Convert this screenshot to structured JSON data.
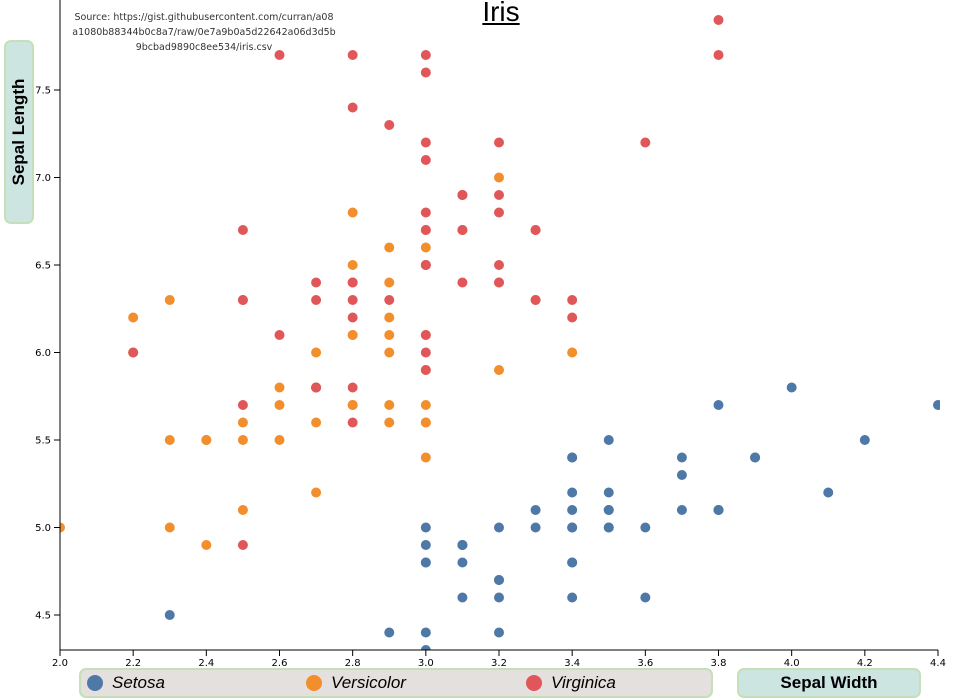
{
  "chart_data": {
    "type": "scatter",
    "title": "Iris",
    "source": "Source: https://gist.githubusercontent.com/curran/a08a1080b88344b0c8a7/raw/0e7a9b0a5d22642a06d3d5b9bcbad9890c8ee534/iris.csv",
    "xlabel": "Sepal Width",
    "ylabel": "Sepal Length",
    "xlim": [
      2.0,
      4.4
    ],
    "ylim": [
      4.3,
      7.9
    ],
    "xticks": [
      "2.0",
      "2.2",
      "2.4",
      "2.6",
      "2.8",
      "3.0",
      "3.2",
      "3.4",
      "3.6",
      "3.8",
      "4.0",
      "4.2",
      "4.4"
    ],
    "yticks": [
      "4.5",
      "5.0",
      "5.5",
      "6.0",
      "6.5",
      "7.0",
      "7.5"
    ],
    "legend": "bottom",
    "series": [
      {
        "name": "Setosa",
        "color": "#4e79a7",
        "points": [
          [
            3.5,
            5.1
          ],
          [
            3.0,
            4.9
          ],
          [
            3.2,
            4.7
          ],
          [
            3.1,
            4.6
          ],
          [
            3.6,
            5.0
          ],
          [
            3.9,
            5.4
          ],
          [
            3.4,
            4.6
          ],
          [
            3.4,
            5.0
          ],
          [
            2.9,
            4.4
          ],
          [
            3.1,
            4.9
          ],
          [
            3.7,
            5.4
          ],
          [
            3.4,
            4.8
          ],
          [
            3.0,
            4.8
          ],
          [
            3.0,
            4.3
          ],
          [
            4.0,
            5.8
          ],
          [
            4.4,
            5.7
          ],
          [
            3.9,
            5.4
          ],
          [
            3.5,
            5.1
          ],
          [
            3.8,
            5.7
          ],
          [
            3.8,
            5.1
          ],
          [
            3.4,
            5.4
          ],
          [
            3.7,
            5.1
          ],
          [
            3.6,
            4.6
          ],
          [
            3.3,
            5.1
          ],
          [
            3.4,
            4.8
          ],
          [
            3.0,
            5.0
          ],
          [
            3.4,
            5.0
          ],
          [
            3.5,
            5.2
          ],
          [
            3.4,
            5.2
          ],
          [
            3.2,
            4.7
          ],
          [
            3.1,
            4.8
          ],
          [
            3.4,
            5.4
          ],
          [
            4.1,
            5.2
          ],
          [
            4.2,
            5.5
          ],
          [
            3.1,
            4.9
          ],
          [
            3.2,
            5.0
          ],
          [
            3.5,
            5.5
          ],
          [
            3.1,
            4.9
          ],
          [
            3.0,
            4.4
          ],
          [
            3.4,
            5.1
          ],
          [
            3.5,
            5.0
          ],
          [
            2.3,
            4.5
          ],
          [
            3.2,
            4.4
          ],
          [
            3.5,
            5.0
          ],
          [
            3.8,
            5.1
          ],
          [
            3.0,
            4.8
          ],
          [
            3.8,
            5.1
          ],
          [
            3.2,
            4.6
          ],
          [
            3.7,
            5.3
          ],
          [
            3.3,
            5.0
          ]
        ]
      },
      {
        "name": "Versicolor",
        "color": "#f28e2b",
        "points": [
          [
            3.2,
            7.0
          ],
          [
            3.2,
            6.4
          ],
          [
            3.1,
            6.9
          ],
          [
            2.3,
            5.5
          ],
          [
            2.8,
            6.5
          ],
          [
            2.8,
            5.7
          ],
          [
            3.3,
            6.3
          ],
          [
            2.4,
            4.9
          ],
          [
            2.9,
            6.6
          ],
          [
            2.7,
            5.2
          ],
          [
            2.0,
            5.0
          ],
          [
            3.0,
            5.9
          ],
          [
            2.2,
            6.0
          ],
          [
            2.9,
            6.1
          ],
          [
            2.9,
            5.6
          ],
          [
            3.1,
            6.7
          ],
          [
            3.0,
            5.6
          ],
          [
            2.7,
            5.8
          ],
          [
            2.2,
            6.2
          ],
          [
            2.5,
            5.6
          ],
          [
            3.2,
            5.9
          ],
          [
            2.8,
            6.1
          ],
          [
            2.5,
            6.3
          ],
          [
            2.8,
            6.1
          ],
          [
            2.9,
            6.4
          ],
          [
            3.0,
            6.6
          ],
          [
            2.8,
            6.8
          ],
          [
            3.0,
            6.7
          ],
          [
            2.9,
            6.0
          ],
          [
            2.6,
            5.7
          ],
          [
            2.4,
            5.5
          ],
          [
            2.4,
            5.5
          ],
          [
            2.7,
            5.8
          ],
          [
            2.7,
            6.0
          ],
          [
            3.0,
            5.4
          ],
          [
            3.4,
            6.0
          ],
          [
            3.1,
            6.7
          ],
          [
            2.3,
            6.3
          ],
          [
            3.0,
            5.6
          ],
          [
            2.5,
            5.5
          ],
          [
            2.6,
            5.5
          ],
          [
            3.0,
            6.1
          ],
          [
            2.6,
            5.8
          ],
          [
            2.3,
            5.0
          ],
          [
            2.7,
            5.6
          ],
          [
            3.0,
            5.7
          ],
          [
            2.9,
            5.7
          ],
          [
            2.9,
            6.2
          ],
          [
            2.5,
            5.1
          ],
          [
            2.8,
            5.7
          ]
        ]
      },
      {
        "name": "Virginica",
        "color": "#e15759",
        "points": [
          [
            3.3,
            6.3
          ],
          [
            2.7,
            5.8
          ],
          [
            3.0,
            7.1
          ],
          [
            2.9,
            6.3
          ],
          [
            3.0,
            6.5
          ],
          [
            3.0,
            7.6
          ],
          [
            2.5,
            4.9
          ],
          [
            2.9,
            7.3
          ],
          [
            2.5,
            6.7
          ],
          [
            3.6,
            7.2
          ],
          [
            3.2,
            6.5
          ],
          [
            2.7,
            6.4
          ],
          [
            3.0,
            6.8
          ],
          [
            2.5,
            5.7
          ],
          [
            2.8,
            5.8
          ],
          [
            3.2,
            6.4
          ],
          [
            3.0,
            6.5
          ],
          [
            3.8,
            7.7
          ],
          [
            2.6,
            7.7
          ],
          [
            2.2,
            6.0
          ],
          [
            3.2,
            6.9
          ],
          [
            2.8,
            5.6
          ],
          [
            2.8,
            7.7
          ],
          [
            2.7,
            6.3
          ],
          [
            3.3,
            6.7
          ],
          [
            3.2,
            7.2
          ],
          [
            2.8,
            6.2
          ],
          [
            3.0,
            6.1
          ],
          [
            2.8,
            6.4
          ],
          [
            3.0,
            7.2
          ],
          [
            2.8,
            7.4
          ],
          [
            3.8,
            7.9
          ],
          [
            2.8,
            6.4
          ],
          [
            2.8,
            6.3
          ],
          [
            2.6,
            6.1
          ],
          [
            3.0,
            7.7
          ],
          [
            3.4,
            6.3
          ],
          [
            3.1,
            6.4
          ],
          [
            3.0,
            6.0
          ],
          [
            3.1,
            6.9
          ],
          [
            3.1,
            6.7
          ],
          [
            3.1,
            6.9
          ],
          [
            2.7,
            5.8
          ],
          [
            3.2,
            6.8
          ],
          [
            3.3,
            6.7
          ],
          [
            3.0,
            6.7
          ],
          [
            2.5,
            6.3
          ],
          [
            3.0,
            6.5
          ],
          [
            3.4,
            6.2
          ],
          [
            3.0,
            5.9
          ]
        ]
      }
    ]
  }
}
